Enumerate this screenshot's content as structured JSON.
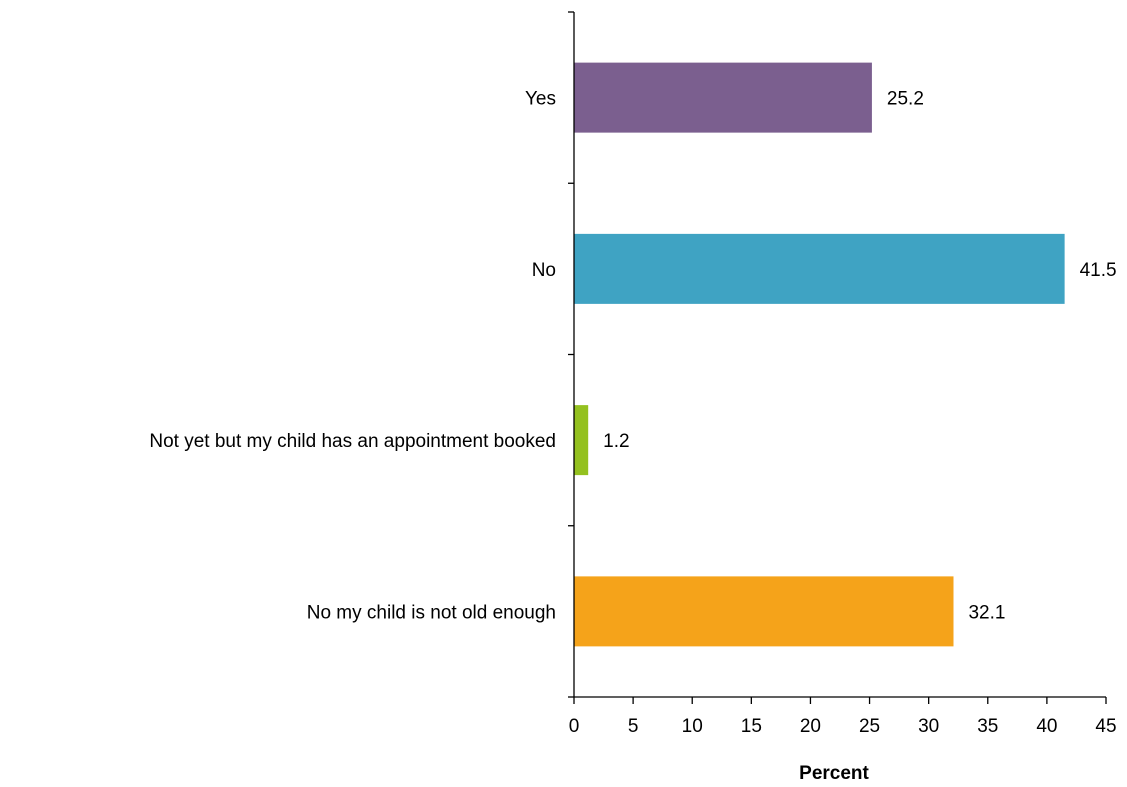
{
  "chart_data": {
    "type": "bar",
    "orientation": "horizontal",
    "categories": [
      "Yes",
      "No",
      "Not yet but my child has an appointment booked",
      "No my child is not old enough"
    ],
    "values": [
      25.2,
      41.5,
      1.2,
      32.1
    ],
    "value_labels": [
      "25.2",
      "41.5",
      "1.2",
      "32.1"
    ],
    "colors": [
      "#7b5f8f",
      "#3fa3c3",
      "#94c11f",
      "#f5a31a"
    ],
    "title": "",
    "xlabel": "Percent",
    "ylabel": "",
    "xlim": [
      0,
      45
    ],
    "xticks": [
      0,
      5,
      10,
      15,
      20,
      25,
      30,
      35,
      40,
      45
    ],
    "grid": false,
    "legend": "none"
  }
}
